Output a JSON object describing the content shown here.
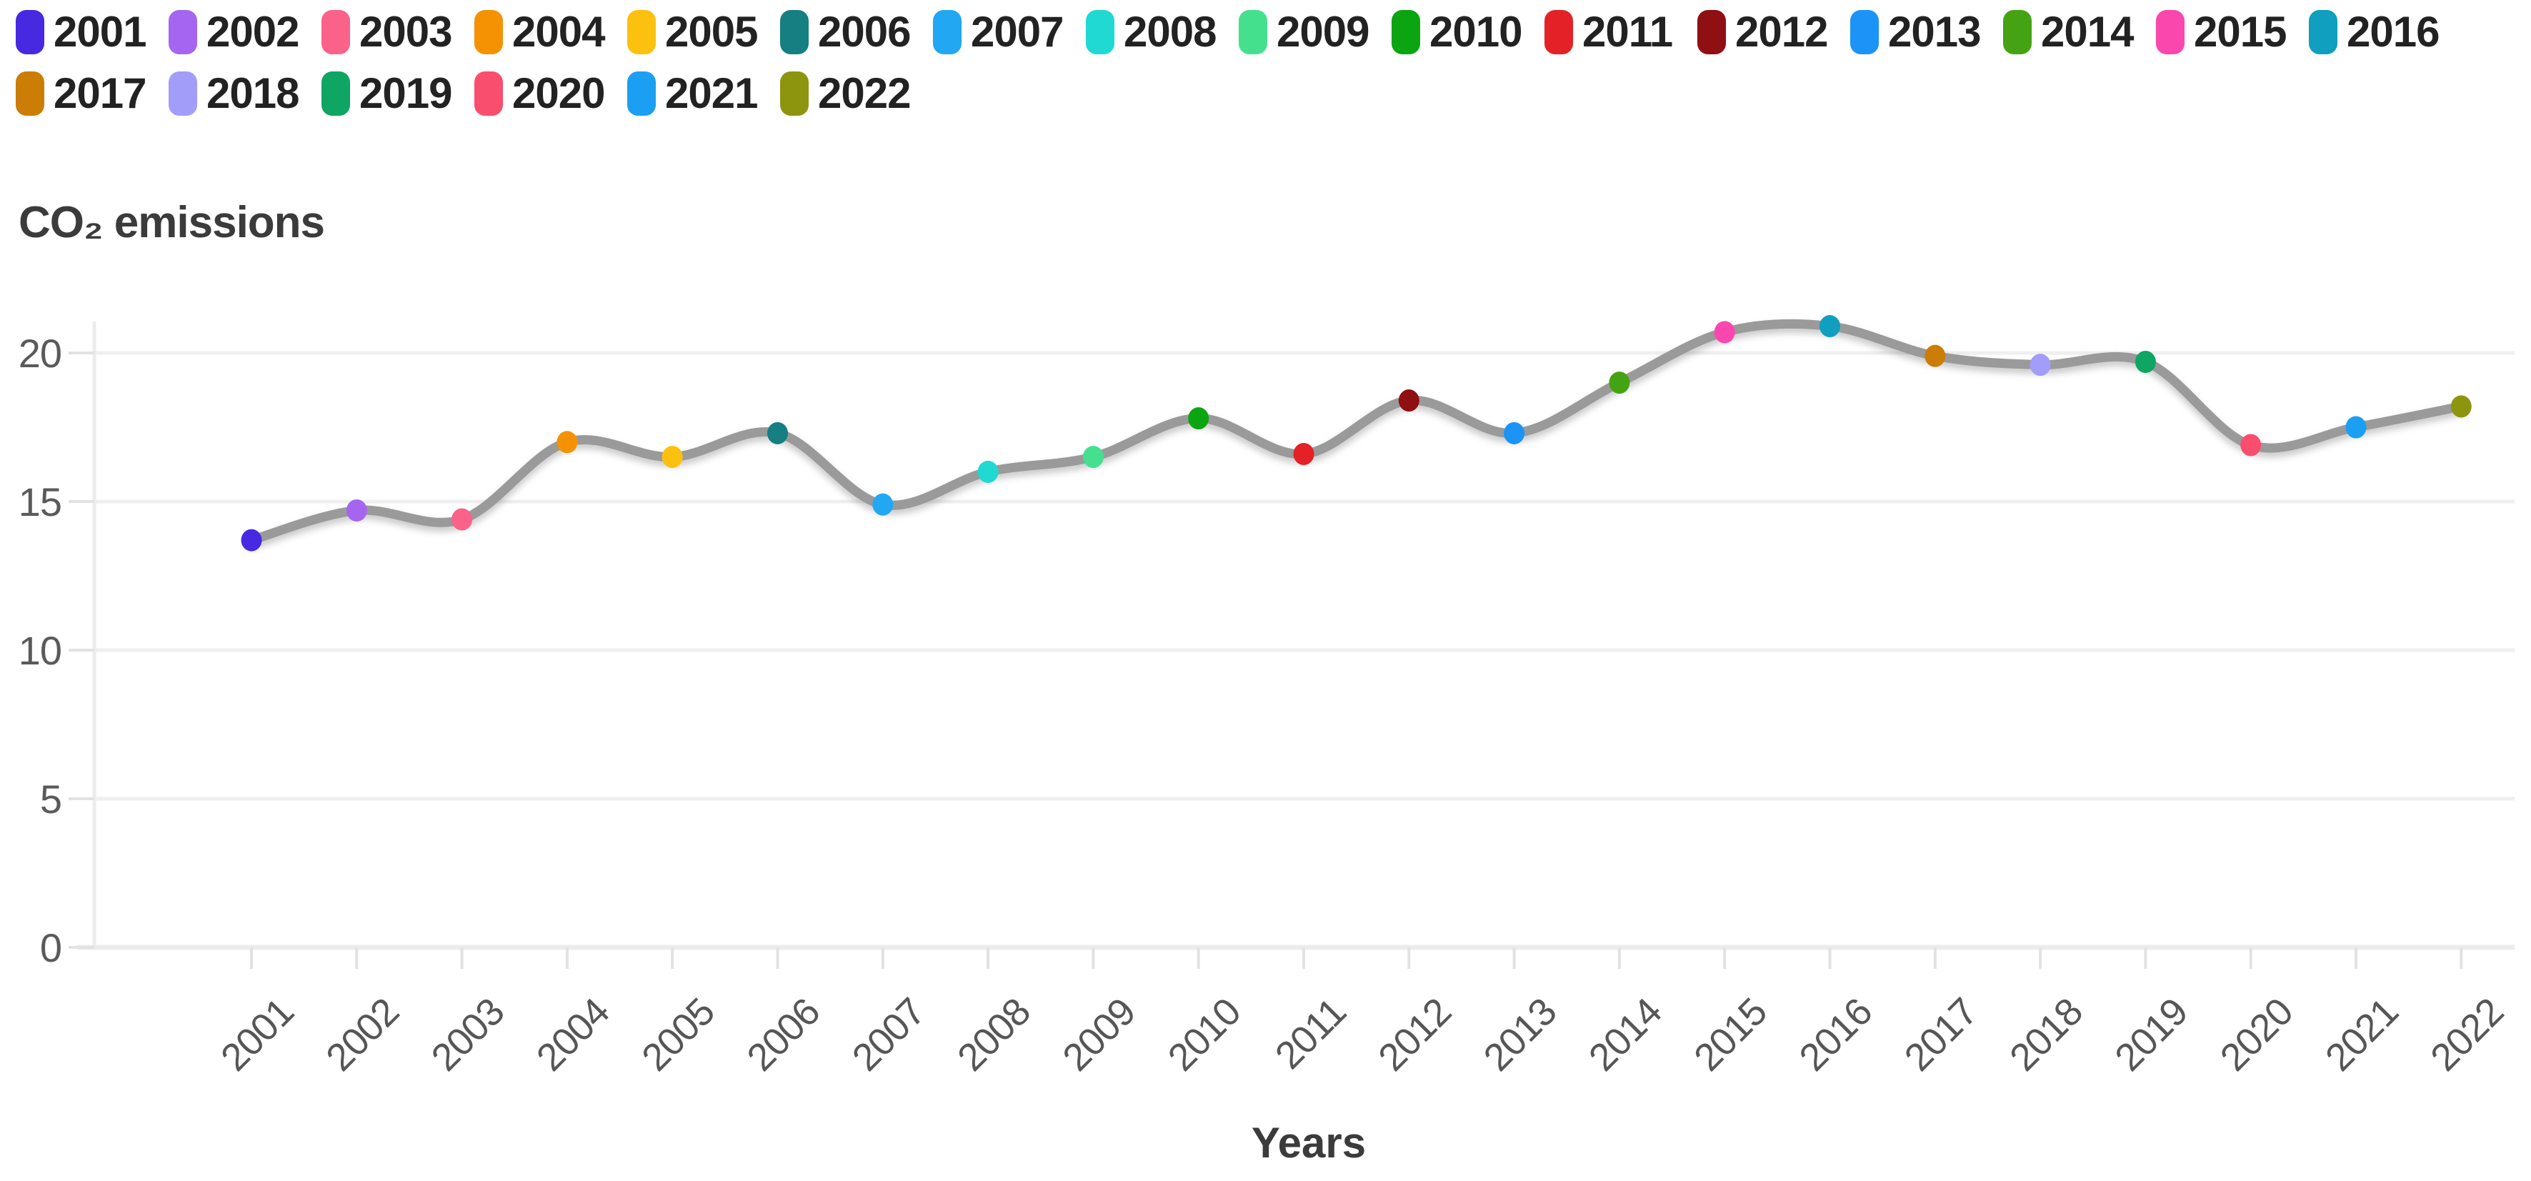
{
  "title": "CO₂ emissions",
  "legend": {
    "items": [
      {
        "year": "2001",
        "color": "#4629e0"
      },
      {
        "year": "2002",
        "color": "#a565f0"
      },
      {
        "year": "2003",
        "color": "#fa6289"
      },
      {
        "year": "2004",
        "color": "#f59204"
      },
      {
        "year": "2005",
        "color": "#fcc10e"
      },
      {
        "year": "2006",
        "color": "#157f82"
      },
      {
        "year": "2007",
        "color": "#22a7f2"
      },
      {
        "year": "2008",
        "color": "#1fd9d2"
      },
      {
        "year": "2009",
        "color": "#44e08e"
      },
      {
        "year": "2010",
        "color": "#0aa510"
      },
      {
        "year": "2011",
        "color": "#e32126"
      },
      {
        "year": "2012",
        "color": "#8f0f12"
      },
      {
        "year": "2013",
        "color": "#1b93f7"
      },
      {
        "year": "2014",
        "color": "#44a312"
      },
      {
        "year": "2015",
        "color": "#fa47ae"
      },
      {
        "year": "2016",
        "color": "#109fbe"
      },
      {
        "year": "2017",
        "color": "#cb7d06"
      },
      {
        "year": "2018",
        "color": "#a29df8"
      },
      {
        "year": "2019",
        "color": "#0fa562"
      },
      {
        "year": "2020",
        "color": "#fa4e6e"
      },
      {
        "year": "2021",
        "color": "#1b9ff2"
      },
      {
        "year": "2022",
        "color": "#8d950f"
      }
    ]
  },
  "chart_data": {
    "type": "line",
    "title": "CO₂ emissions",
    "xlabel": "Years",
    "ylabel": "",
    "x": [
      "2001",
      "2002",
      "2003",
      "2004",
      "2005",
      "2006",
      "2007",
      "2008",
      "2009",
      "2010",
      "2011",
      "2012",
      "2013",
      "2014",
      "2015",
      "2016",
      "2017",
      "2018",
      "2019",
      "2020",
      "2021",
      "2022"
    ],
    "values": [
      13.7,
      14.7,
      14.4,
      17.0,
      16.5,
      17.3,
      14.9,
      16.0,
      16.5,
      17.8,
      16.6,
      18.4,
      17.3,
      19.0,
      20.7,
      20.9,
      19.9,
      19.6,
      19.7,
      16.9,
      17.5,
      18.2
    ],
    "point_colors": [
      "#4629e0",
      "#a565f0",
      "#fa6289",
      "#f59204",
      "#fcc10e",
      "#157f82",
      "#22a7f2",
      "#1fd9d2",
      "#44e08e",
      "#0aa510",
      "#e32126",
      "#8f0f12",
      "#1b93f7",
      "#44a312",
      "#fa47ae",
      "#109fbe",
      "#cb7d06",
      "#a29df8",
      "#0fa562",
      "#fa4e6e",
      "#1b9ff2",
      "#8d950f"
    ],
    "yticks": [
      0,
      5,
      10,
      15,
      20
    ],
    "ylim": [
      0,
      21
    ],
    "grid": "horizontal-light",
    "legend_position": "top",
    "line_color": "#9a9a9a",
    "gridline_color": "#efefef",
    "axis_line_color": "#ececec",
    "tick_color": "#e2e2e2",
    "tick_label_color": "#565656",
    "smooth": true
  }
}
